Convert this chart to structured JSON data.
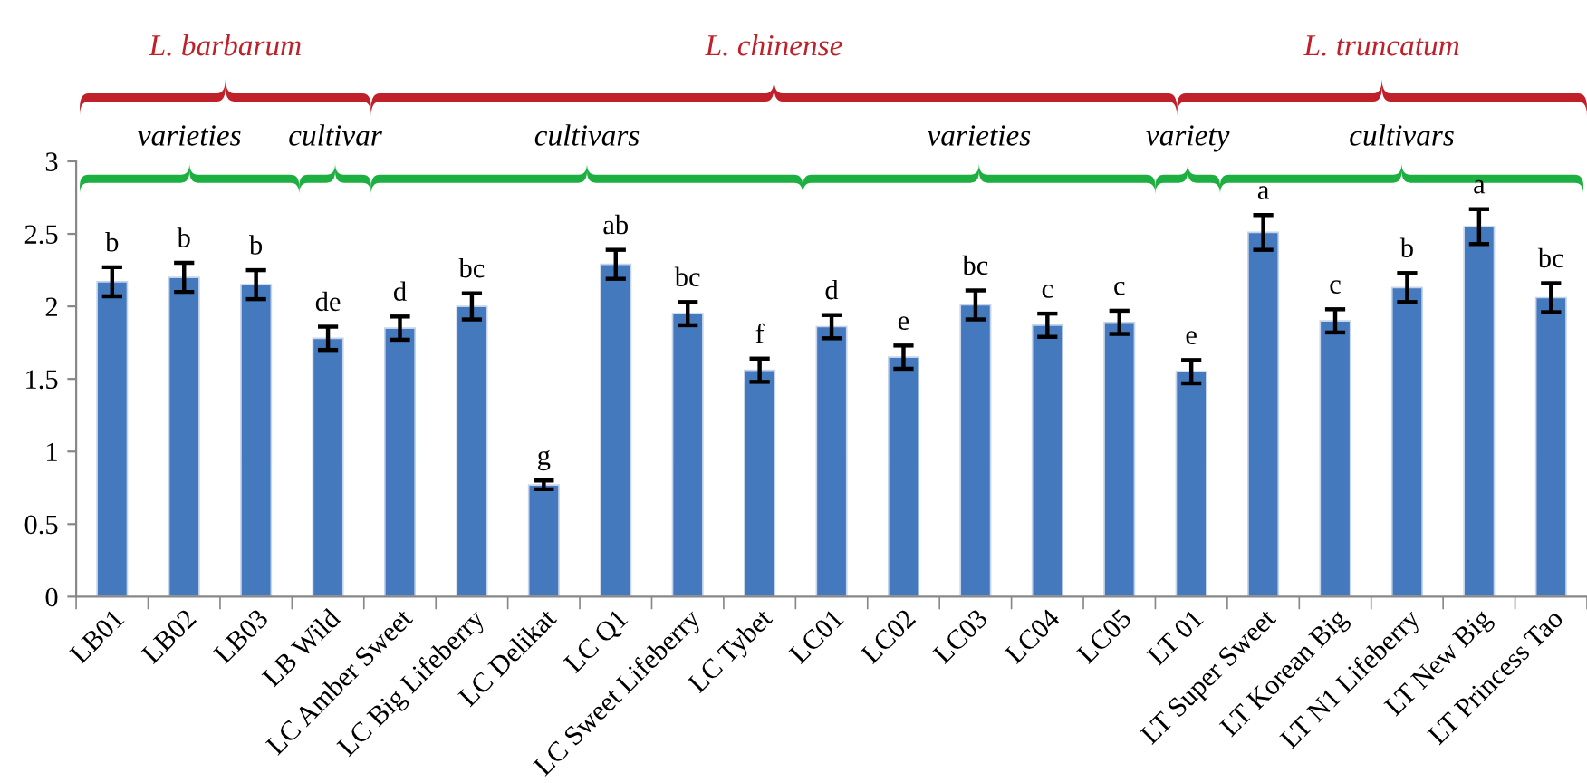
{
  "chart_data": {
    "type": "bar",
    "categories": [
      "LB01",
      "LB02",
      "LB03",
      "LB Wild",
      "LC Amber Sweet",
      "LC Big Lifeberry",
      "LC Delikat",
      "LC Q1",
      "LC Sweet Lifeberry",
      "LC Tybet",
      "LC01",
      "LC02",
      "LC03",
      "LC04",
      "LC05",
      "LT 01",
      "LT Super Sweet",
      "LT Korean Big",
      "LT N1 Lifeberry",
      "LT New Big",
      "LT Princess Tao"
    ],
    "values": [
      2.17,
      2.2,
      2.15,
      1.78,
      1.85,
      2.0,
      0.77,
      2.29,
      1.95,
      1.56,
      1.86,
      1.65,
      2.01,
      1.87,
      1.89,
      1.55,
      2.51,
      1.9,
      2.13,
      2.55,
      2.06
    ],
    "errors": [
      0.1,
      0.1,
      0.1,
      0.08,
      0.08,
      0.09,
      0.03,
      0.1,
      0.08,
      0.08,
      0.08,
      0.08,
      0.1,
      0.08,
      0.08,
      0.08,
      0.12,
      0.08,
      0.1,
      0.12,
      0.1
    ],
    "color": "#4479be",
    "ylim": [
      0,
      3
    ],
    "yticks": [
      0,
      0.5,
      1,
      1.5,
      2,
      2.5,
      3
    ],
    "grid": false,
    "legend": false,
    "annotations": [
      {
        "text": "b",
        "x": "LB01",
        "y": 2.27
      },
      {
        "text": "b",
        "x": "LB02",
        "y": 2.3
      },
      {
        "text": "b",
        "x": "LB03",
        "y": 2.25
      },
      {
        "text": "de",
        "x": "LB Wild",
        "y": 1.86
      },
      {
        "text": "d",
        "x": "LC Amber Sweet",
        "y": 1.93
      },
      {
        "text": "bc",
        "x": "LC Big Lifeberry",
        "y": 2.09
      },
      {
        "text": "g",
        "x": "LC Delikat",
        "y": 0.8
      },
      {
        "text": "ab",
        "x": "LC Q1",
        "y": 2.39
      },
      {
        "text": "bc",
        "x": "LC Sweet Lifeberry",
        "y": 2.03
      },
      {
        "text": "f",
        "x": "LC Tybet",
        "y": 1.64
      },
      {
        "text": "d",
        "x": "LC01",
        "y": 1.94
      },
      {
        "text": "e",
        "x": "LC02",
        "y": 1.73
      },
      {
        "text": "bc",
        "x": "LC03",
        "y": 2.11
      },
      {
        "text": "c",
        "x": "LC04",
        "y": 1.95
      },
      {
        "text": "c",
        "x": "LC05",
        "y": 1.97
      },
      {
        "text": "e",
        "x": "LT 01",
        "y": 1.63
      },
      {
        "text": "a",
        "x": "LT Super Sweet",
        "y": 2.63
      },
      {
        "text": "c",
        "x": "LT Korean Big",
        "y": 1.98
      },
      {
        "text": "b",
        "x": "LT N1 Lifeberry",
        "y": 2.23
      },
      {
        "text": "a",
        "x": "LT New Big",
        "y": 2.67
      },
      {
        "text": "bc",
        "x": "LT Princess Tao",
        "y": 2.16
      },
      "L. barbarum",
      "L. chinense",
      "L. truncatum",
      "varieties",
      "cultivar",
      "cultivars",
      "varieties",
      "variety",
      "cultivars"
    ]
  }
}
